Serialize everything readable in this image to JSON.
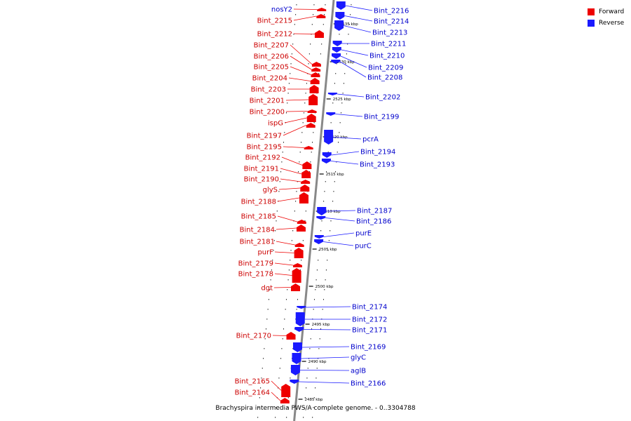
{
  "caption": "Brachyspira intermedia PWS/A complete genome. - 0..3304788",
  "legend": [
    {
      "label": "Forward",
      "color": "#ee0000"
    },
    {
      "label": "Reverse",
      "color": "#1a1aff"
    }
  ],
  "colors": {
    "forward_fill": "#ee0000",
    "forward_label": "#cc0000",
    "reverse_fill": "#1a1aff",
    "reverse_label": "#0000cc",
    "backbone": "#888888"
  },
  "ticks": [
    {
      "label": "2535 kbp",
      "kbp": 2535
    },
    {
      "label": "2530 kbp",
      "kbp": 2530
    },
    {
      "label": "2525 kbp",
      "kbp": 2525
    },
    {
      "label": "2520 kbp",
      "kbp": 2520
    },
    {
      "label": "2515 kbp",
      "kbp": 2515
    },
    {
      "label": "2510 kbp",
      "kbp": 2510
    },
    {
      "label": "2505 kbp",
      "kbp": 2505
    },
    {
      "label": "2500 kbp",
      "kbp": 2500
    },
    {
      "label": "2495 kbp",
      "kbp": 2495
    },
    {
      "label": "2490 kbp",
      "kbp": 2490
    },
    {
      "label": "2485 kbp",
      "kbp": 2485
    }
  ],
  "forward_genes": [
    {
      "label": "nosY2"
    },
    {
      "label": "Bint_2215"
    },
    {
      "label": "Bint_2212"
    },
    {
      "label": "Bint_2207"
    },
    {
      "label": "Bint_2206"
    },
    {
      "label": "Bint_2205"
    },
    {
      "label": "Bint_2204"
    },
    {
      "label": "Bint_2203"
    },
    {
      "label": "Bint_2201"
    },
    {
      "label": "Bint_2200"
    },
    {
      "label": "ispG"
    },
    {
      "label": "Bint_2197"
    },
    {
      "label": "Bint_2195"
    },
    {
      "label": "Bint_2192"
    },
    {
      "label": "Bint_2191"
    },
    {
      "label": "Bint_2190"
    },
    {
      "label": "glyS"
    },
    {
      "label": "Bint_2188"
    },
    {
      "label": "Bint_2185"
    },
    {
      "label": "Bint_2184"
    },
    {
      "label": "Bint_2181"
    },
    {
      "label": "purF"
    },
    {
      "label": "Bint_2179"
    },
    {
      "label": "Bint_2178"
    },
    {
      "label": "dgt"
    },
    {
      "label": "Bint_2170"
    },
    {
      "label": "Bint_2165"
    },
    {
      "label": "Bint_2164"
    }
  ],
  "reverse_genes": [
    {
      "label": "Bint_2216"
    },
    {
      "label": "Bint_2214"
    },
    {
      "label": "Bint_2213"
    },
    {
      "label": "Bint_2211"
    },
    {
      "label": "Bint_2210"
    },
    {
      "label": "Bint_2209"
    },
    {
      "label": "Bint_2208"
    },
    {
      "label": "Bint_2202"
    },
    {
      "label": "Bint_2199"
    },
    {
      "label": "pcrA"
    },
    {
      "label": "Bint_2194"
    },
    {
      "label": "Bint_2193"
    },
    {
      "label": "Bint_2187"
    },
    {
      "label": "Bint_2186"
    },
    {
      "label": "purE"
    },
    {
      "label": "purC"
    },
    {
      "label": "Bint_2174"
    },
    {
      "label": "Bint_2172"
    },
    {
      "label": "Bint_2171"
    },
    {
      "label": "Bint_2169"
    },
    {
      "label": "glyC"
    },
    {
      "label": "aglB"
    },
    {
      "label": "Bint_2166"
    }
  ]
}
